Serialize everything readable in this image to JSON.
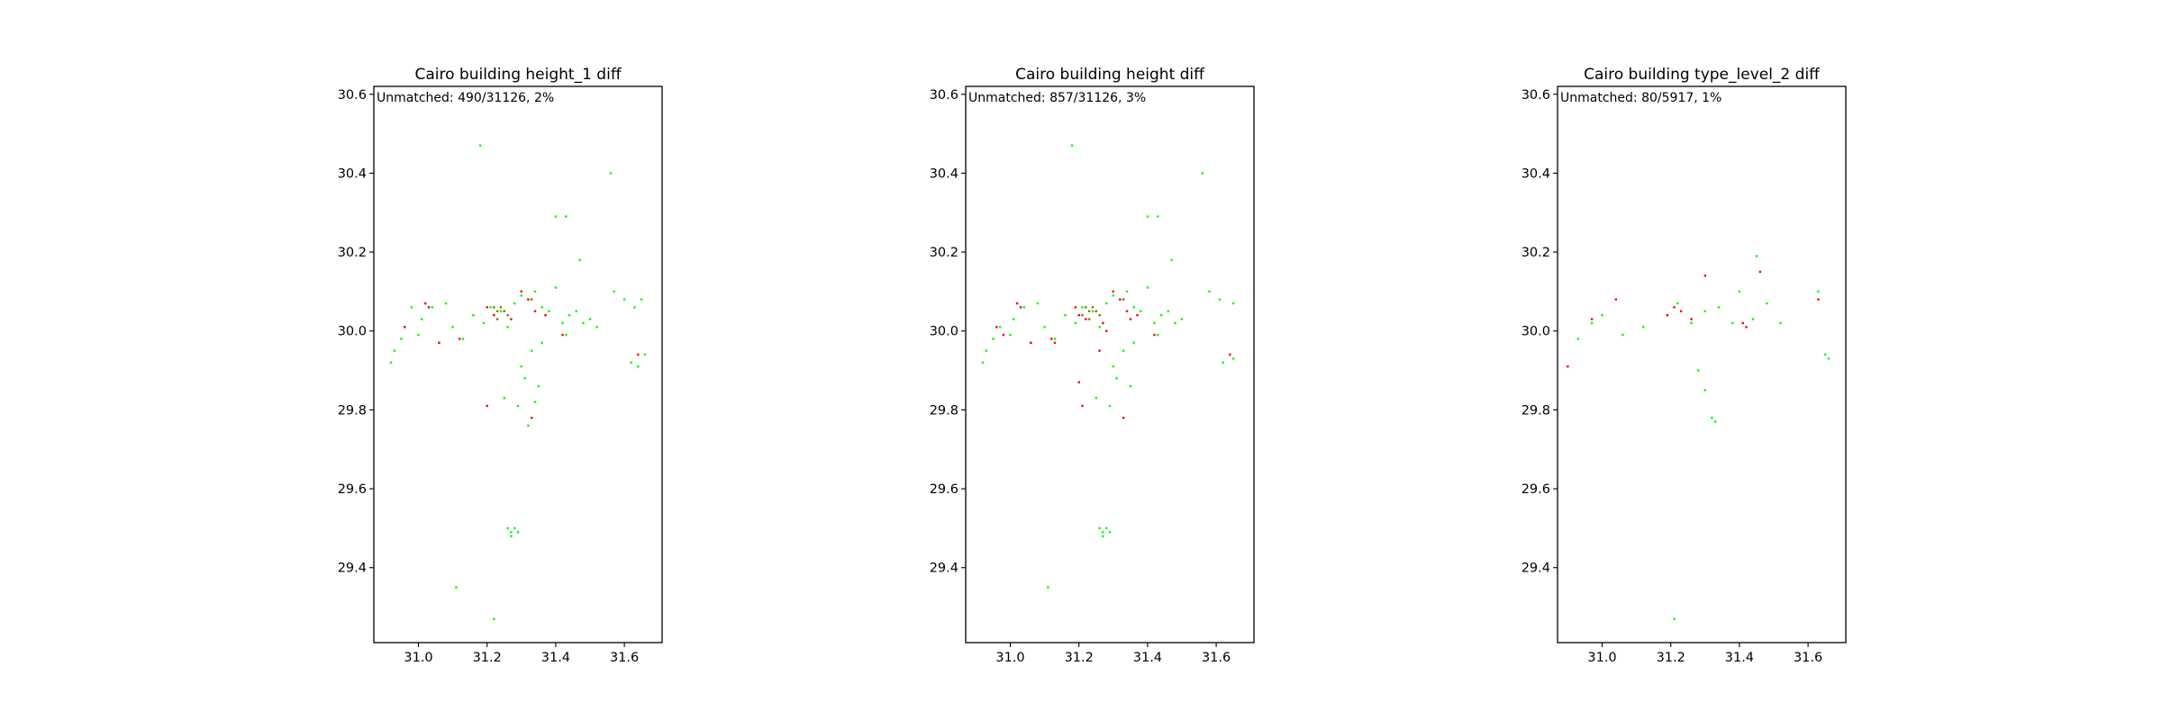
{
  "figure": {
    "background": "#ffffff"
  },
  "colors": {
    "unmatched_a": "#00ff00",
    "unmatched_b": "#ff0000",
    "overlap": "#808000"
  },
  "chart_data": [
    {
      "type": "scatter",
      "title": "Cairo building height_1 diff",
      "annotation": "Unmatched: 490/31126, 2%",
      "xlabel": "",
      "ylabel": "",
      "xlim": [
        30.87,
        31.71
      ],
      "ylim": [
        29.21,
        30.62
      ],
      "xticks": [
        "31.0",
        "31.2",
        "31.4",
        "31.6"
      ],
      "yticks": [
        "29.4",
        "29.6",
        "29.8",
        "30.0",
        "30.2",
        "30.4",
        "30.6"
      ],
      "grid": false,
      "series": [
        {
          "color": "#00ff00",
          "points": [
            [
              30.92,
              29.92
            ],
            [
              30.93,
              29.95
            ],
            [
              30.95,
              29.98
            ],
            [
              30.96,
              30.01
            ],
            [
              31.0,
              29.99
            ],
            [
              31.04,
              30.06
            ],
            [
              31.06,
              29.97
            ],
            [
              31.1,
              30.01
            ],
            [
              31.13,
              29.98
            ],
            [
              31.16,
              30.04
            ],
            [
              31.19,
              30.02
            ],
            [
              31.21,
              30.06
            ],
            [
              31.24,
              30.05
            ],
            [
              31.26,
              30.01
            ],
            [
              31.28,
              30.07
            ],
            [
              31.3,
              30.09
            ],
            [
              31.32,
              30.08
            ],
            [
              31.34,
              30.1
            ],
            [
              31.36,
              30.06
            ],
            [
              31.38,
              30.05
            ],
            [
              31.4,
              30.11
            ],
            [
              31.42,
              30.02
            ],
            [
              31.44,
              30.04
            ],
            [
              31.46,
              30.05
            ],
            [
              31.48,
              30.02
            ],
            [
              31.5,
              30.03
            ],
            [
              31.52,
              30.01
            ],
            [
              31.43,
              29.99
            ],
            [
              31.36,
              29.97
            ],
            [
              31.33,
              29.95
            ],
            [
              31.3,
              29.91
            ],
            [
              31.31,
              29.88
            ],
            [
              31.35,
              29.86
            ],
            [
              31.34,
              29.82
            ],
            [
              31.33,
              29.78
            ],
            [
              31.32,
              29.76
            ],
            [
              31.29,
              29.81
            ],
            [
              31.25,
              29.83
            ],
            [
              31.4,
              30.29
            ],
            [
              31.43,
              30.29
            ],
            [
              31.57,
              30.1
            ],
            [
              31.6,
              30.08
            ],
            [
              31.63,
              30.06
            ],
            [
              31.65,
              30.08
            ],
            [
              31.62,
              29.92
            ],
            [
              31.64,
              29.91
            ],
            [
              31.66,
              29.94
            ],
            [
              31.26,
              29.5
            ],
            [
              31.27,
              29.49
            ],
            [
              31.28,
              29.5
            ],
            [
              31.29,
              29.49
            ],
            [
              31.27,
              29.48
            ],
            [
              31.11,
              29.35
            ],
            [
              31.22,
              29.27
            ],
            [
              31.18,
              30.47
            ],
            [
              31.56,
              30.4
            ],
            [
              31.47,
              30.18
            ],
            [
              31.08,
              30.07
            ],
            [
              30.98,
              30.06
            ],
            [
              31.01,
              30.03
            ]
          ]
        },
        {
          "color": "#ff0000",
          "points": [
            [
              30.96,
              30.01
            ],
            [
              31.02,
              30.07
            ],
            [
              31.03,
              30.06
            ],
            [
              31.06,
              29.97
            ],
            [
              31.12,
              29.98
            ],
            [
              31.2,
              30.06
            ],
            [
              31.22,
              30.04
            ],
            [
              31.25,
              30.05
            ],
            [
              31.27,
              30.03
            ],
            [
              31.3,
              30.1
            ],
            [
              31.32,
              30.08
            ],
            [
              31.34,
              30.05
            ],
            [
              31.37,
              30.04
            ],
            [
              31.42,
              29.99
            ],
            [
              31.2,
              29.81
            ],
            [
              31.33,
              29.78
            ],
            [
              31.64,
              29.94
            ]
          ]
        },
        {
          "color": "#808000",
          "points": [
            [
              31.23,
              30.05
            ],
            [
              31.24,
              30.06
            ],
            [
              31.25,
              30.05
            ],
            [
              31.26,
              30.04
            ],
            [
              31.23,
              30.03
            ],
            [
              31.22,
              30.06
            ],
            [
              31.33,
              30.08
            ]
          ]
        }
      ]
    },
    {
      "type": "scatter",
      "title": "Cairo building height diff",
      "annotation": "Unmatched: 857/31126, 3%",
      "xlabel": "",
      "ylabel": "",
      "xlim": [
        30.87,
        31.71
      ],
      "ylim": [
        29.21,
        30.62
      ],
      "xticks": [
        "31.0",
        "31.2",
        "31.4",
        "31.6"
      ],
      "yticks": [
        "29.4",
        "29.6",
        "29.8",
        "30.0",
        "30.2",
        "30.4",
        "30.6"
      ],
      "grid": false,
      "series": [
        {
          "color": "#00ff00",
          "points": [
            [
              30.92,
              29.92
            ],
            [
              30.93,
              29.95
            ],
            [
              30.95,
              29.98
            ],
            [
              30.97,
              30.01
            ],
            [
              31.0,
              29.99
            ],
            [
              31.04,
              30.06
            ],
            [
              31.06,
              29.97
            ],
            [
              31.1,
              30.01
            ],
            [
              31.13,
              29.98
            ],
            [
              31.16,
              30.04
            ],
            [
              31.19,
              30.02
            ],
            [
              31.21,
              30.06
            ],
            [
              31.24,
              30.05
            ],
            [
              31.26,
              30.01
            ],
            [
              31.28,
              30.07
            ],
            [
              31.3,
              30.09
            ],
            [
              31.32,
              30.08
            ],
            [
              31.34,
              30.1
            ],
            [
              31.36,
              30.06
            ],
            [
              31.38,
              30.05
            ],
            [
              31.4,
              30.11
            ],
            [
              31.42,
              30.02
            ],
            [
              31.44,
              30.04
            ],
            [
              31.46,
              30.05
            ],
            [
              31.48,
              30.02
            ],
            [
              31.5,
              30.03
            ],
            [
              31.43,
              29.99
            ],
            [
              31.36,
              29.97
            ],
            [
              31.33,
              29.95
            ],
            [
              31.3,
              29.91
            ],
            [
              31.31,
              29.88
            ],
            [
              31.35,
              29.86
            ],
            [
              31.33,
              29.78
            ],
            [
              31.29,
              29.81
            ],
            [
              31.25,
              29.83
            ],
            [
              31.4,
              30.29
            ],
            [
              31.43,
              30.29
            ],
            [
              31.58,
              30.1
            ],
            [
              31.61,
              30.08
            ],
            [
              31.65,
              30.07
            ],
            [
              31.62,
              29.92
            ],
            [
              31.65,
              29.93
            ],
            [
              31.26,
              29.5
            ],
            [
              31.27,
              29.49
            ],
            [
              31.28,
              29.5
            ],
            [
              31.29,
              29.49
            ],
            [
              31.27,
              29.48
            ],
            [
              31.11,
              29.35
            ],
            [
              31.18,
              30.47
            ],
            [
              31.56,
              30.4
            ],
            [
              31.47,
              30.18
            ],
            [
              31.08,
              30.07
            ],
            [
              31.01,
              30.03
            ]
          ]
        },
        {
          "color": "#ff0000",
          "points": [
            [
              30.96,
              30.01
            ],
            [
              30.98,
              29.99
            ],
            [
              31.02,
              30.07
            ],
            [
              31.03,
              30.06
            ],
            [
              31.06,
              29.97
            ],
            [
              31.12,
              29.98
            ],
            [
              31.13,
              29.97
            ],
            [
              31.19,
              30.06
            ],
            [
              31.2,
              30.04
            ],
            [
              31.22,
              30.03
            ],
            [
              31.25,
              30.05
            ],
            [
              31.27,
              30.02
            ],
            [
              31.28,
              30.0
            ],
            [
              31.3,
              30.1
            ],
            [
              31.32,
              30.08
            ],
            [
              31.34,
              30.05
            ],
            [
              31.35,
              30.03
            ],
            [
              31.37,
              30.04
            ],
            [
              31.42,
              29.99
            ],
            [
              31.2,
              29.87
            ],
            [
              31.21,
              29.81
            ],
            [
              31.33,
              29.78
            ],
            [
              31.64,
              29.94
            ],
            [
              31.26,
              29.95
            ]
          ]
        },
        {
          "color": "#808000",
          "points": [
            [
              31.23,
              30.05
            ],
            [
              31.24,
              30.06
            ],
            [
              31.25,
              30.05
            ],
            [
              31.26,
              30.04
            ],
            [
              31.23,
              30.03
            ],
            [
              31.22,
              30.06
            ],
            [
              31.33,
              30.08
            ],
            [
              31.21,
              30.04
            ]
          ]
        }
      ]
    },
    {
      "type": "scatter",
      "title": "Cairo building type_level_2 diff",
      "annotation": "Unmatched: 80/5917, 1%",
      "xlabel": "",
      "ylabel": "",
      "xlim": [
        30.87,
        31.71
      ],
      "ylim": [
        29.21,
        30.62
      ],
      "xticks": [
        "31.0",
        "31.2",
        "31.4",
        "31.6"
      ],
      "yticks": [
        "29.4",
        "29.6",
        "29.8",
        "30.0",
        "30.2",
        "30.4",
        "30.6"
      ],
      "grid": false,
      "series": [
        {
          "color": "#00ff00",
          "points": [
            [
              30.93,
              29.98
            ],
            [
              30.97,
              30.02
            ],
            [
              31.0,
              30.04
            ],
            [
              31.06,
              29.99
            ],
            [
              31.12,
              30.01
            ],
            [
              31.19,
              30.04
            ],
            [
              31.22,
              30.07
            ],
            [
              31.26,
              30.02
            ],
            [
              31.3,
              30.05
            ],
            [
              31.34,
              30.06
            ],
            [
              31.38,
              30.02
            ],
            [
              31.4,
              30.1
            ],
            [
              31.44,
              30.03
            ],
            [
              31.48,
              30.07
            ],
            [
              31.52,
              30.02
            ],
            [
              31.28,
              29.9
            ],
            [
              31.3,
              29.85
            ],
            [
              31.32,
              29.78
            ],
            [
              31.33,
              29.77
            ],
            [
              31.63,
              30.1
            ],
            [
              31.65,
              29.94
            ],
            [
              31.66,
              29.93
            ],
            [
              31.45,
              30.19
            ],
            [
              31.21,
              29.27
            ]
          ]
        },
        {
          "color": "#ff0000",
          "points": [
            [
              30.9,
              29.91
            ],
            [
              30.97,
              30.03
            ],
            [
              31.04,
              30.08
            ],
            [
              31.19,
              30.04
            ],
            [
              31.21,
              30.06
            ],
            [
              31.23,
              30.05
            ],
            [
              31.26,
              30.03
            ],
            [
              31.3,
              30.14
            ],
            [
              31.41,
              30.02
            ],
            [
              31.42,
              30.01
            ],
            [
              31.46,
              30.15
            ],
            [
              31.63,
              30.08
            ]
          ]
        }
      ]
    }
  ]
}
